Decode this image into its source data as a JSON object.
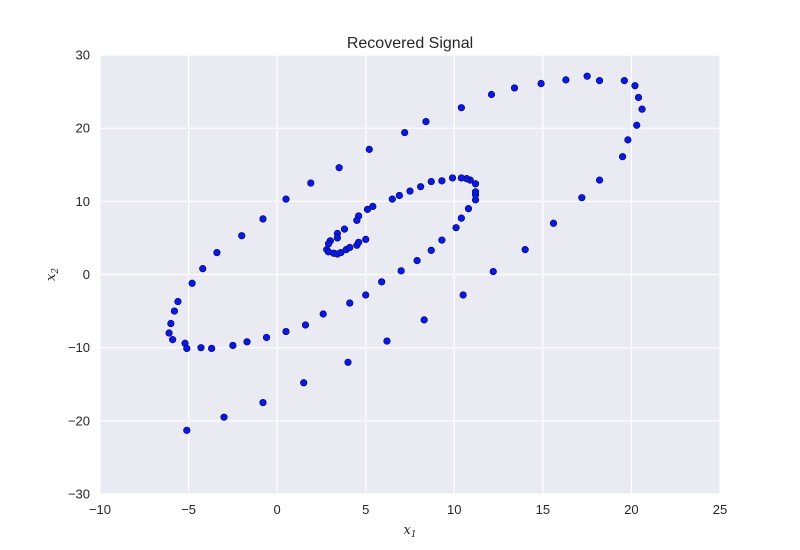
{
  "chart_data": {
    "type": "scatter",
    "title": "Recovered Signal",
    "xlabel": {
      "base": "x",
      "sub": "1"
    },
    "ylabel": {
      "base": "x",
      "sub": "2"
    },
    "xlim": [
      -10,
      25
    ],
    "ylim": [
      -30,
      30
    ],
    "xticks": [
      -10,
      -5,
      0,
      5,
      10,
      15,
      20,
      25
    ],
    "yticks": [
      -30,
      -20,
      -10,
      0,
      10,
      20,
      30
    ],
    "grid": true,
    "point_color": "#0a1ad8",
    "background_color": "#eaeaf2",
    "series": [
      {
        "points": [
          [
            -5.1,
            -21.3
          ],
          [
            -3.0,
            -19.5
          ],
          [
            -0.8,
            -17.5
          ],
          [
            1.5,
            -14.8
          ],
          [
            4.0,
            -12.0
          ],
          [
            6.2,
            -9.1
          ],
          [
            8.3,
            -6.2
          ],
          [
            10.5,
            -2.8
          ],
          [
            12.2,
            0.4
          ],
          [
            14.0,
            3.4
          ],
          [
            15.6,
            7.0
          ],
          [
            17.2,
            10.5
          ],
          [
            18.2,
            12.9
          ],
          [
            19.5,
            16.1
          ],
          [
            19.8,
            18.4
          ],
          [
            20.3,
            20.4
          ],
          [
            20.6,
            22.6
          ],
          [
            20.4,
            24.2
          ],
          [
            20.2,
            25.8
          ],
          [
            19.6,
            26.5
          ],
          [
            18.2,
            26.5
          ],
          [
            17.5,
            27.1
          ],
          [
            16.3,
            26.6
          ],
          [
            14.9,
            26.1
          ],
          [
            13.4,
            25.5
          ],
          [
            12.1,
            24.6
          ],
          [
            10.4,
            22.8
          ],
          [
            8.4,
            20.9
          ],
          [
            7.2,
            19.4
          ],
          [
            5.2,
            17.1
          ],
          [
            3.5,
            14.6
          ],
          [
            1.9,
            12.5
          ],
          [
            0.5,
            10.3
          ],
          [
            -0.8,
            7.6
          ],
          [
            -2.0,
            5.3
          ],
          [
            -3.4,
            3.0
          ],
          [
            -4.2,
            0.8
          ],
          [
            -4.8,
            -1.2
          ],
          [
            -5.6,
            -3.7
          ],
          [
            -5.8,
            -5.0
          ],
          [
            -6.0,
            -6.7
          ],
          [
            -6.1,
            -8.0
          ],
          [
            -5.9,
            -8.9
          ],
          [
            -5.2,
            -9.4
          ],
          [
            -5.1,
            -10.1
          ],
          [
            -4.3,
            -10.0
          ],
          [
            -3.7,
            -10.1
          ],
          [
            -2.5,
            -9.7
          ],
          [
            -1.7,
            -9.2
          ],
          [
            -0.6,
            -8.6
          ],
          [
            0.5,
            -7.8
          ],
          [
            1.6,
            -6.9
          ],
          [
            2.6,
            -5.4
          ],
          [
            4.1,
            -3.9
          ],
          [
            5.0,
            -2.8
          ],
          [
            5.9,
            -1.0
          ],
          [
            7.0,
            0.5
          ],
          [
            7.9,
            1.9
          ],
          [
            8.7,
            3.3
          ],
          [
            9.3,
            4.7
          ],
          [
            10.1,
            6.4
          ],
          [
            10.4,
            7.7
          ],
          [
            10.8,
            9.0
          ],
          [
            11.2,
            10.2
          ],
          [
            11.2,
            10.9
          ],
          [
            11.2,
            11.3
          ],
          [
            11.2,
            12.4
          ],
          [
            10.9,
            12.9
          ],
          [
            10.7,
            13.1
          ],
          [
            10.4,
            13.2
          ],
          [
            9.9,
            13.2
          ],
          [
            9.3,
            12.8
          ],
          [
            8.7,
            12.7
          ],
          [
            8.1,
            12.0
          ],
          [
            7.5,
            11.4
          ],
          [
            6.9,
            10.8
          ],
          [
            6.5,
            10.3
          ],
          [
            5.4,
            9.3
          ],
          [
            5.1,
            8.9
          ],
          [
            4.6,
            8.0
          ],
          [
            4.5,
            7.4
          ],
          [
            3.8,
            6.2
          ],
          [
            3.4,
            5.6
          ],
          [
            3.4,
            5.0
          ],
          [
            3.0,
            4.6
          ],
          [
            2.9,
            4.2
          ],
          [
            2.8,
            3.4
          ],
          [
            2.9,
            3.1
          ],
          [
            3.2,
            2.9
          ],
          [
            3.4,
            2.8
          ],
          [
            3.6,
            3.0
          ],
          [
            3.9,
            3.4
          ],
          [
            4.1,
            3.7
          ],
          [
            4.5,
            4.0
          ],
          [
            4.6,
            4.4
          ],
          [
            5.0,
            4.8
          ]
        ]
      }
    ]
  }
}
